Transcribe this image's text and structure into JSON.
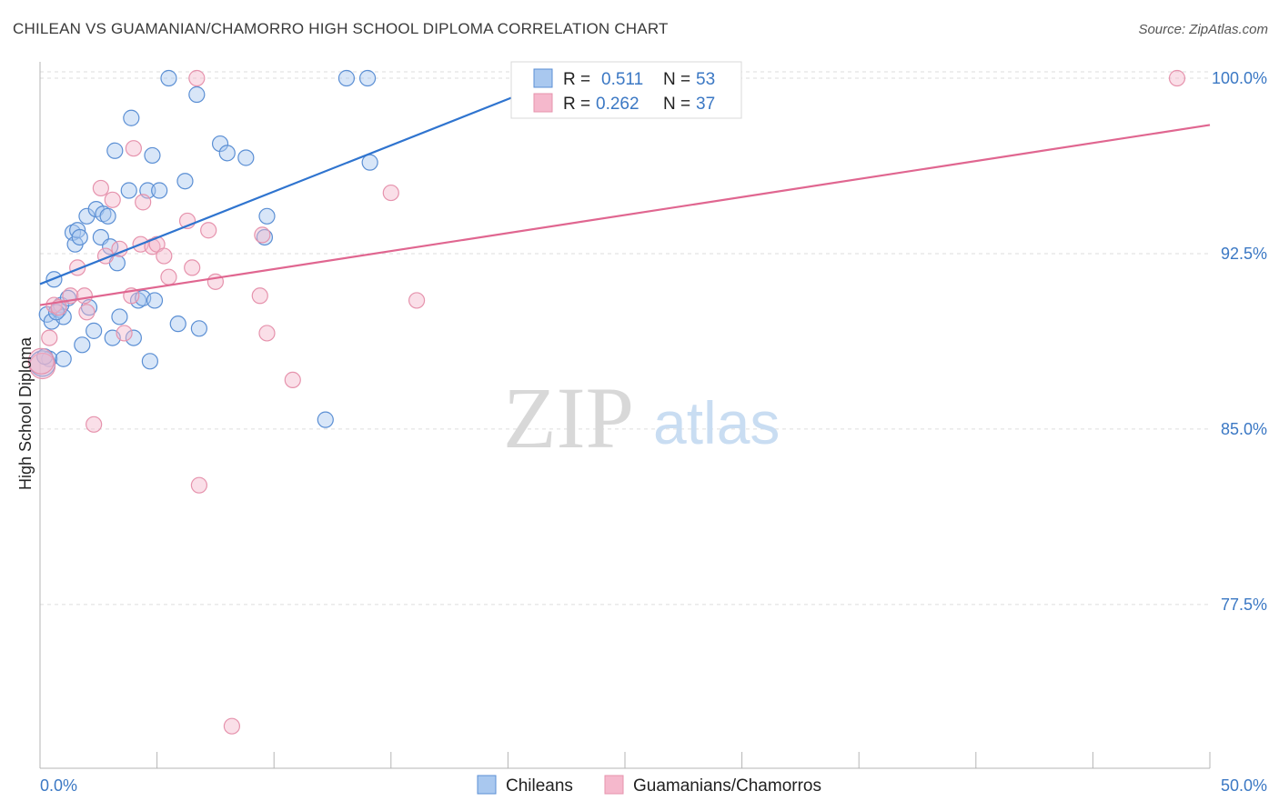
{
  "title": "CHILEAN VS GUAMANIAN/CHAMORRO HIGH SCHOOL DIPLOMA CORRELATION CHART",
  "source": "Source: ZipAtlas.com",
  "watermark": {
    "zip": "ZIP",
    "atlas": "atlas"
  },
  "legend_top": {
    "rows": [
      {
        "r_label": "R =",
        "r_value": "0.511",
        "n_label": "N =",
        "n_value": "53"
      },
      {
        "r_label": "R =",
        "r_value": "0.262",
        "n_label": "N =",
        "n_value": "37"
      }
    ]
  },
  "colors": {
    "blue_fill": "#a9c8ef",
    "blue_stroke": "#5b8fd4",
    "blue_line": "#2f74cf",
    "pink_fill": "#f5b8cc",
    "pink_stroke": "#e693ad",
    "pink_line": "#e06690",
    "tick_text": "#3b78c4",
    "grid": "#dddddd"
  },
  "chart_data": {
    "type": "scatter",
    "title": "CHILEAN VS GUAMANIAN/CHAMORRO HIGH SCHOOL DIPLOMA CORRELATION CHART",
    "xlabel": "",
    "ylabel": "High School Diploma",
    "xlim": [
      0,
      50
    ],
    "ylim": [
      70.5,
      100.7
    ],
    "x_tick_labels": [
      "0.0%",
      "50.0%"
    ],
    "y_ticks": [
      100.0,
      92.5,
      85.0,
      77.5
    ],
    "y_tick_labels": [
      "100.0%",
      "92.5%",
      "85.0%",
      "77.5%"
    ],
    "grid": true,
    "legend_position": "bottom",
    "series": [
      {
        "name": "Chileans",
        "color": "#a9c8ef",
        "trend": {
          "x": [
            0.0,
            21.5
          ],
          "y": [
            91.2,
            99.7
          ]
        },
        "points": [
          [
            0.3,
            89.9
          ],
          [
            0.4,
            88.0
          ],
          [
            0.5,
            89.6
          ],
          [
            0.6,
            91.4
          ],
          [
            0.8,
            90.1
          ],
          [
            0.9,
            90.3
          ],
          [
            1.0,
            88.0
          ],
          [
            1.0,
            89.8
          ],
          [
            1.2,
            90.6
          ],
          [
            1.4,
            93.4
          ],
          [
            1.5,
            92.9
          ],
          [
            1.6,
            93.5
          ],
          [
            1.7,
            93.2
          ],
          [
            1.8,
            88.6
          ],
          [
            2.0,
            94.1
          ],
          [
            2.1,
            90.2
          ],
          [
            2.3,
            89.2
          ],
          [
            2.4,
            94.4
          ],
          [
            2.6,
            93.2
          ],
          [
            2.7,
            94.2
          ],
          [
            2.9,
            94.1
          ],
          [
            3.0,
            92.8
          ],
          [
            3.1,
            88.9
          ],
          [
            3.2,
            96.9
          ],
          [
            3.3,
            92.1
          ],
          [
            3.4,
            89.8
          ],
          [
            3.8,
            95.2
          ],
          [
            3.9,
            98.3
          ],
          [
            4.0,
            88.9
          ],
          [
            4.2,
            90.5
          ],
          [
            4.4,
            90.6
          ],
          [
            4.6,
            95.2
          ],
          [
            4.7,
            87.9
          ],
          [
            4.8,
            96.7
          ],
          [
            4.9,
            90.5
          ],
          [
            5.1,
            95.2
          ],
          [
            5.5,
            100.0
          ],
          [
            5.9,
            89.5
          ],
          [
            6.2,
            95.6
          ],
          [
            6.8,
            89.3
          ],
          [
            6.7,
            99.3
          ],
          [
            7.7,
            97.2
          ],
          [
            8.0,
            96.8
          ],
          [
            8.8,
            96.6
          ],
          [
            9.6,
            93.2
          ],
          [
            9.7,
            94.1
          ],
          [
            12.2,
            85.4
          ],
          [
            13.1,
            100.0
          ],
          [
            14.0,
            100.0
          ],
          [
            14.1,
            96.4
          ],
          [
            0.1,
            87.8
          ],
          [
            0.2,
            88.1
          ],
          [
            0.7,
            90.0
          ]
        ]
      },
      {
        "name": "Guamanians/Chamorros",
        "color": "#f5b8cc",
        "trend": {
          "x": [
            0.0,
            50.0
          ],
          "y": [
            90.3,
            98.0
          ]
        },
        "points": [
          [
            0.1,
            87.7
          ],
          [
            0.4,
            88.9
          ],
          [
            0.6,
            90.3
          ],
          [
            0.8,
            90.2
          ],
          [
            1.3,
            90.7
          ],
          [
            1.6,
            91.9
          ],
          [
            1.9,
            90.7
          ],
          [
            2.0,
            90.0
          ],
          [
            2.3,
            85.2
          ],
          [
            2.6,
            95.3
          ],
          [
            2.8,
            92.4
          ],
          [
            3.1,
            94.8
          ],
          [
            3.4,
            92.7
          ],
          [
            3.6,
            89.1
          ],
          [
            3.9,
            90.7
          ],
          [
            4.0,
            97.0
          ],
          [
            4.3,
            92.9
          ],
          [
            4.4,
            94.7
          ],
          [
            4.8,
            92.8
          ],
          [
            5.0,
            92.9
          ],
          [
            5.3,
            92.4
          ],
          [
            5.5,
            91.5
          ],
          [
            6.3,
            93.9
          ],
          [
            6.5,
            91.9
          ],
          [
            6.7,
            100.0
          ],
          [
            6.8,
            82.6
          ],
          [
            7.2,
            93.5
          ],
          [
            7.5,
            91.3
          ],
          [
            8.2,
            72.3
          ],
          [
            9.4,
            90.7
          ],
          [
            9.5,
            93.3
          ],
          [
            9.7,
            89.1
          ],
          [
            10.8,
            87.1
          ],
          [
            15.0,
            95.1
          ],
          [
            16.1,
            90.5
          ],
          [
            48.6,
            100.0
          ],
          [
            0.05,
            87.9
          ]
        ]
      }
    ]
  }
}
